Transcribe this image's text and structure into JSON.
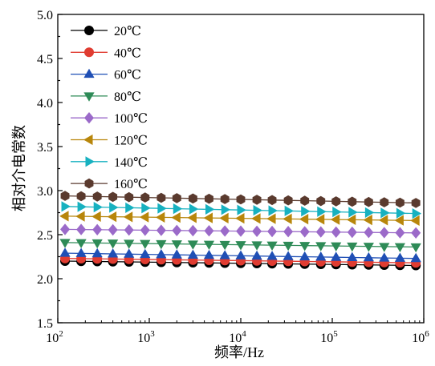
{
  "chart_data": {
    "type": "line",
    "title": "",
    "xlabel": "频率/Hz",
    "ylabel": "相对介电常数",
    "xscale": "log",
    "xlim": [
      100,
      1000000
    ],
    "ylim": [
      1.5,
      5.0
    ],
    "grid": false,
    "legend_position": "top-left",
    "x_ticks": [
      {
        "value": 100,
        "base": "10",
        "exp": "2"
      },
      {
        "value": 1000,
        "base": "10",
        "exp": "3"
      },
      {
        "value": 10000,
        "base": "10",
        "exp": "4"
      },
      {
        "value": 100000,
        "base": "10",
        "exp": "5"
      },
      {
        "value": 1000000,
        "base": "10",
        "exp": "6"
      }
    ],
    "y_ticks": [
      "1.5",
      "2.0",
      "2.5",
      "3.0",
      "3.5",
      "4.0",
      "4.5",
      "5.0"
    ],
    "x": [
      120,
      180,
      270,
      400,
      600,
      900,
      1350,
      2000,
      3000,
      4500,
      6700,
      10000,
      15000,
      22000,
      33000,
      50000,
      75000,
      110000,
      165000,
      250000,
      370000,
      550000,
      820000
    ],
    "series": [
      {
        "name": "20℃",
        "color": "#000000",
        "marker": "circle",
        "start": 2.2,
        "end": 2.15
      },
      {
        "name": "40℃",
        "color": "#e03c31",
        "marker": "circle",
        "start": 2.23,
        "end": 2.18
      },
      {
        "name": "60℃",
        "color": "#1f4fb5",
        "marker": "triangle-up",
        "start": 2.29,
        "end": 2.23
      },
      {
        "name": "80℃",
        "color": "#2e8b57",
        "marker": "triangle-down",
        "start": 2.41,
        "end": 2.36
      },
      {
        "name": "100℃",
        "color": "#9b6ac9",
        "marker": "diamond",
        "start": 2.56,
        "end": 2.52
      },
      {
        "name": "120℃",
        "color": "#b8860b",
        "marker": "triangle-left",
        "start": 2.71,
        "end": 2.66
      },
      {
        "name": "140℃",
        "color": "#17b1c0",
        "marker": "triangle-right",
        "start": 2.82,
        "end": 2.74
      },
      {
        "name": "160℃",
        "color": "#5a3a2e",
        "marker": "hexagon",
        "start": 2.94,
        "end": 2.86
      }
    ]
  }
}
